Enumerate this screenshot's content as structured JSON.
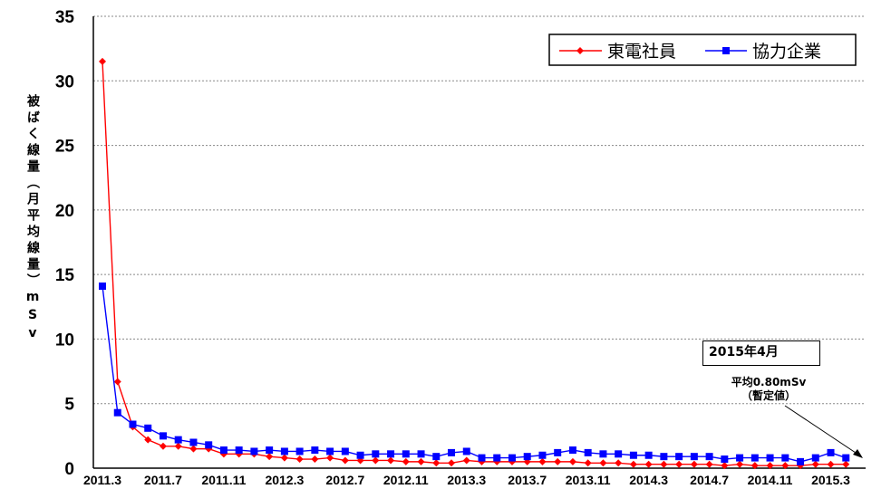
{
  "chart_data": {
    "type": "line",
    "ylabel": "被ばく線量（月平均線量）mSv",
    "ylim": [
      0,
      35
    ],
    "yticks": [
      0,
      5,
      10,
      15,
      20,
      25,
      30,
      35
    ],
    "grid": true,
    "legend_position": "top-right",
    "x": [
      "2011.3",
      "2011.4",
      "2011.5",
      "2011.6",
      "2011.7",
      "2011.8",
      "2011.9",
      "2011.10",
      "2011.11",
      "2011.12",
      "2012.1",
      "2012.2",
      "2012.3",
      "2012.4",
      "2012.5",
      "2012.6",
      "2012.7",
      "2012.8",
      "2012.9",
      "2012.10",
      "2012.11",
      "2012.12",
      "2013.1",
      "2013.2",
      "2013.3",
      "2013.4",
      "2013.5",
      "2013.6",
      "2013.7",
      "2013.8",
      "2013.9",
      "2013.10",
      "2013.11",
      "2013.12",
      "2014.1",
      "2014.2",
      "2014.3",
      "2014.4",
      "2014.5",
      "2014.6",
      "2014.7",
      "2014.8",
      "2014.9",
      "2014.10",
      "2014.11",
      "2014.12",
      "2015.1",
      "2015.2",
      "2015.3",
      "2015.4"
    ],
    "xtick_labels": [
      "2011.3",
      "2011.7",
      "2011.11",
      "2012.3",
      "2012.7",
      "2012.11",
      "2013.3",
      "2013.7",
      "2013.11",
      "2014.3",
      "2014.7",
      "2014.11",
      "2015.3"
    ],
    "series": [
      {
        "name": "東電社員",
        "color": "#ff0000",
        "marker": "diamond",
        "values": [
          31.5,
          6.7,
          3.2,
          2.2,
          1.7,
          1.7,
          1.5,
          1.5,
          1.1,
          1.1,
          1.1,
          0.9,
          0.8,
          0.7,
          0.7,
          0.8,
          0.6,
          0.6,
          0.6,
          0.6,
          0.5,
          0.5,
          0.4,
          0.4,
          0.6,
          0.5,
          0.5,
          0.5,
          0.5,
          0.5,
          0.5,
          0.5,
          0.4,
          0.4,
          0.4,
          0.3,
          0.3,
          0.3,
          0.3,
          0.3,
          0.3,
          0.2,
          0.3,
          0.2,
          0.2,
          0.2,
          0.2,
          0.3,
          0.3,
          0.3
        ]
      },
      {
        "name": "協力企業",
        "color": "#0000ff",
        "marker": "square",
        "values": [
          14.1,
          4.3,
          3.4,
          3.1,
          2.5,
          2.2,
          2.0,
          1.8,
          1.4,
          1.4,
          1.3,
          1.4,
          1.3,
          1.3,
          1.4,
          1.3,
          1.3,
          1.0,
          1.1,
          1.1,
          1.1,
          1.1,
          0.9,
          1.2,
          1.3,
          0.8,
          0.8,
          0.8,
          0.9,
          1.0,
          1.2,
          1.4,
          1.2,
          1.1,
          1.1,
          1.0,
          1.0,
          0.9,
          0.9,
          0.9,
          0.9,
          0.7,
          0.8,
          0.8,
          0.8,
          0.8,
          0.5,
          0.8,
          1.2,
          0.8
        ]
      }
    ]
  },
  "annotation": {
    "box_label": "2015年4月",
    "line1": "平均0.80mSv",
    "line2": "（暫定値）"
  }
}
